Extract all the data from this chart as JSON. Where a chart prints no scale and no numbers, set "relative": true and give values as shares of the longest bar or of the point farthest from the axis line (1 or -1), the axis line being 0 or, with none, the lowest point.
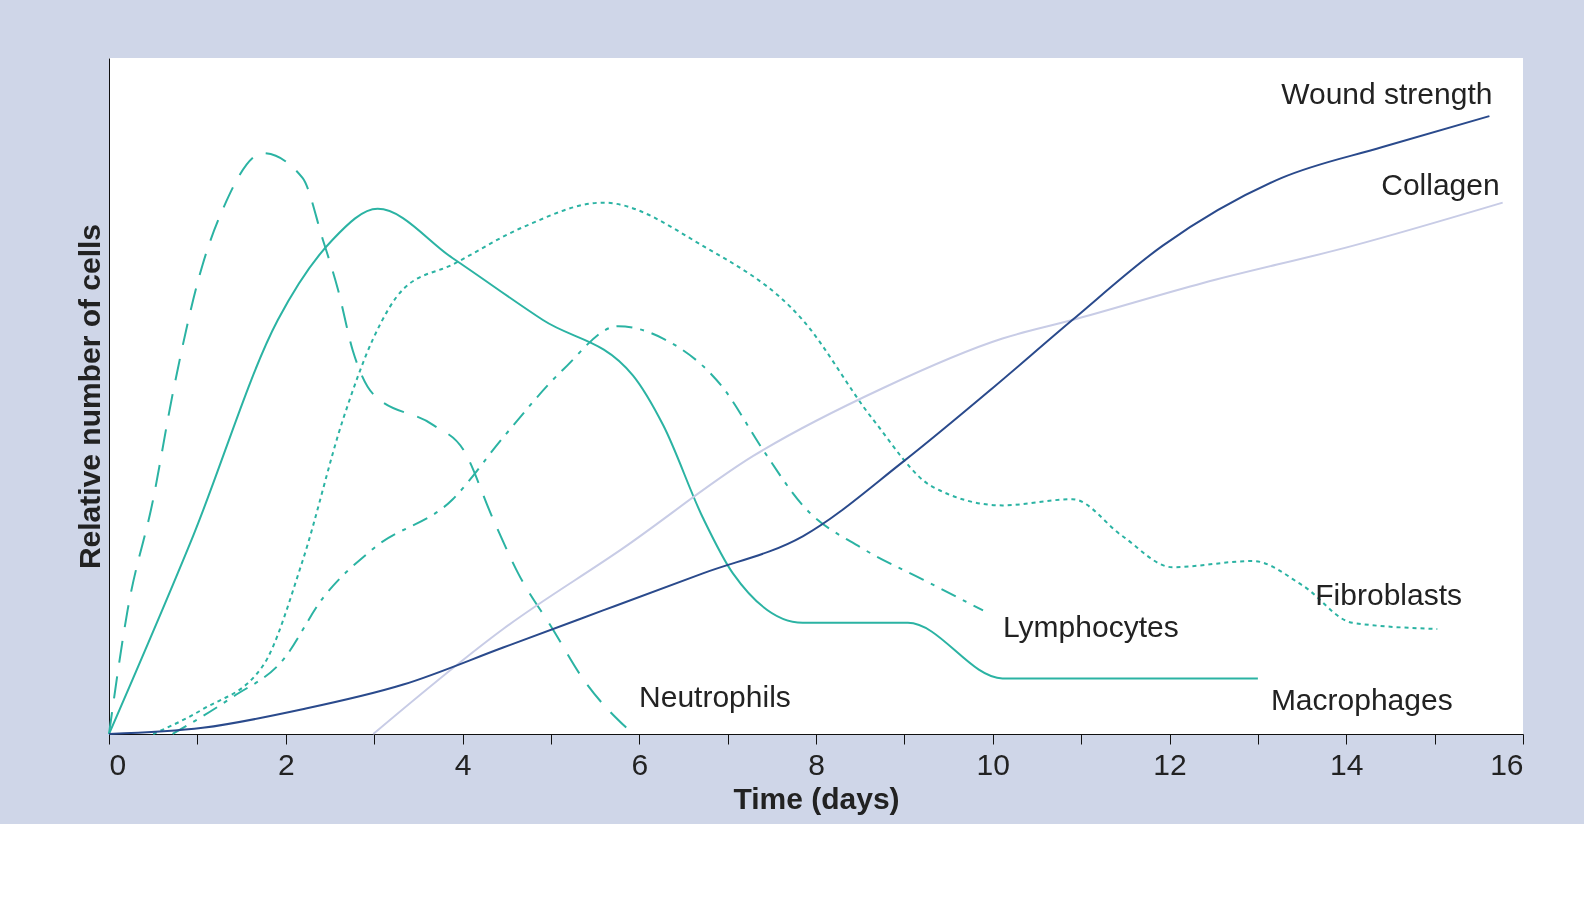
{
  "chart_data": {
    "type": "line",
    "relative": true,
    "xlabel": "Time (days)",
    "ylabel": "Relative number of cells",
    "xlim": [
      0,
      16
    ],
    "xticks": [
      0,
      {
        "value": 1,
        "label": null
      },
      2,
      {
        "value": 3,
        "label": null
      },
      4,
      {
        "value": 5,
        "label": null
      },
      6,
      {
        "value": 7,
        "label": null
      },
      8,
      {
        "value": 9,
        "label": null
      },
      10,
      {
        "value": 11,
        "label": null
      },
      12,
      {
        "value": 13,
        "label": null
      },
      14,
      {
        "value": 15,
        "label": null
      },
      16
    ],
    "grid": false,
    "marker": "none",
    "series": [
      {
        "name": "Neutrophils",
        "color": "#2bb3a3",
        "line_style": "dashed",
        "x": [
          0,
          0.21,
          0.5,
          0.72,
          1.06,
          1.29,
          1.74,
          2.19,
          2.42,
          2.59,
          2.76,
          2.99,
          3.67,
          4.01,
          4.34,
          4.63,
          5.02,
          5.36,
          5.93
        ],
        "values": [
          0,
          0.2,
          0.38,
          0.55,
          0.76,
          0.85,
          0.94,
          0.9,
          0.8,
          0.72,
          0.62,
          0.55,
          0.5,
          0.46,
          0.35,
          0.26,
          0.17,
          0.09,
          0
        ]
      },
      {
        "name": "Macrophages",
        "color": "#2bb3a3",
        "line_style": "solid",
        "x": [
          0,
          0.95,
          1.91,
          2.53,
          3.04,
          3.89,
          4.91,
          5.93,
          6.27,
          6.72,
          7.06,
          7.85,
          9.04,
          10.11,
          13.0
        ],
        "values": [
          0,
          0.32,
          0.67,
          0.8,
          0.85,
          0.77,
          0.67,
          0.58,
          0.5,
          0.35,
          0.26,
          0.18,
          0.18,
          0.09,
          0.09
        ]
      },
      {
        "name": "Fibroblasts",
        "color": "#2bb3a3",
        "line_style": "dotted",
        "x": [
          0.5,
          1.06,
          1.74,
          2.19,
          2.65,
          2.99,
          3.33,
          3.89,
          4.68,
          5.59,
          6.72,
          7.85,
          8.64,
          9.32,
          10.11,
          10.9,
          11.47,
          12.03,
          12.94,
          13.51,
          14.07,
          15.03
        ],
        "values": [
          0,
          0.04,
          0.11,
          0.28,
          0.51,
          0.64,
          0.72,
          0.76,
          0.82,
          0.86,
          0.79,
          0.67,
          0.51,
          0.4,
          0.37,
          0.38,
          0.32,
          0.27,
          0.28,
          0.24,
          0.18,
          0.17
        ]
      },
      {
        "name": "Lymphocytes",
        "color": "#2bb3a3",
        "line_style": "dashdot",
        "x": [
          0.72,
          1.4,
          1.97,
          2.42,
          2.99,
          3.89,
          4.46,
          5.14,
          5.76,
          6.27,
          6.95,
          7.4,
          7.85,
          8.53,
          9.21,
          9.89
        ],
        "values": [
          0,
          0.06,
          0.12,
          0.22,
          0.3,
          0.38,
          0.48,
          0.59,
          0.66,
          0.64,
          0.56,
          0.46,
          0.37,
          0.3,
          0.25,
          0.2
        ]
      },
      {
        "name": "Collagen",
        "color": "#c8cce6",
        "line_style": "solid",
        "x": [
          2.99,
          4.46,
          5.81,
          7.29,
          8.76,
          10.11,
          10.9,
          12.38,
          14.07,
          15.77
        ],
        "values": [
          0,
          0.17,
          0.3,
          0.45,
          0.56,
          0.64,
          0.67,
          0.73,
          0.79,
          0.86
        ]
      },
      {
        "name": "Wound strength",
        "color": "#2a4a8c",
        "line_style": "solid",
        "x": [
          0,
          1.06,
          2.19,
          3.33,
          4.46,
          5.59,
          6.72,
          7.85,
          8.98,
          10.0,
          10.9,
          11.92,
          13.27,
          14.41,
          15.62
        ],
        "values": [
          0,
          0.01,
          0.04,
          0.08,
          0.14,
          0.2,
          0.26,
          0.32,
          0.44,
          0.56,
          0.67,
          0.79,
          0.9,
          0.95,
          1
        ]
      }
    ]
  }
}
